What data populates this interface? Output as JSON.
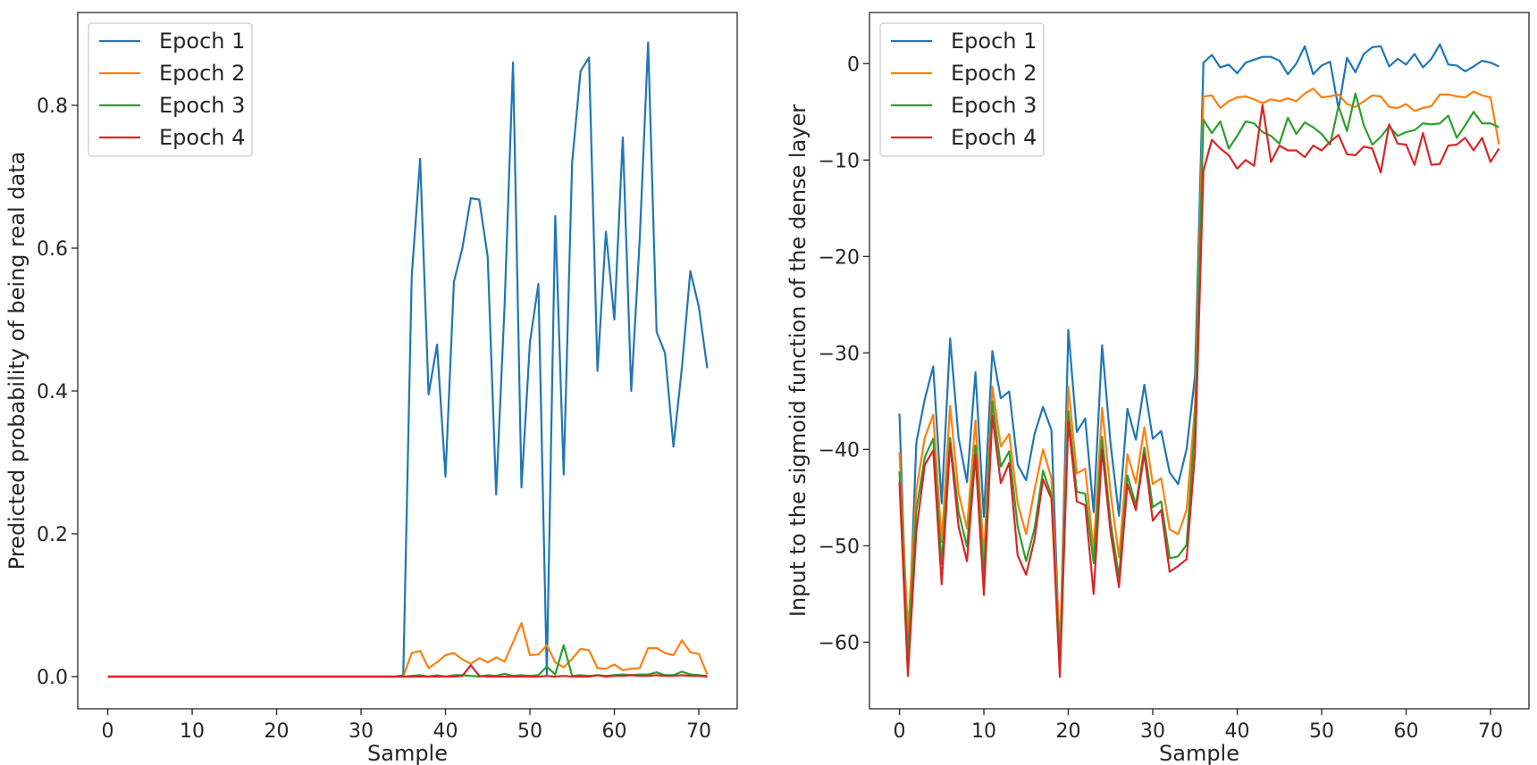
{
  "chart_data": [
    {
      "type": "line",
      "title": "",
      "xlabel": "Sample",
      "ylabel": "Predicted probability of being real data",
      "xlim": [
        -3.55,
        74.55
      ],
      "ylim": [
        -0.045,
        0.93
      ],
      "xticks": [
        0,
        10,
        20,
        30,
        40,
        50,
        60,
        70
      ],
      "xtick_labels": [
        "0",
        "10",
        "20",
        "30",
        "40",
        "50",
        "60",
        "70"
      ],
      "yticks": [
        0.0,
        0.2,
        0.4,
        0.6,
        0.8
      ],
      "ytick_labels": [
        "0.0",
        "0.2",
        "0.4",
        "0.6",
        "0.8"
      ],
      "grid": false,
      "legend_position": "top-left",
      "series": [
        {
          "name": "Epoch 1",
          "color": "#1f77b4",
          "values": [
            0,
            0,
            0,
            0,
            0,
            0,
            0,
            0,
            0,
            0,
            0,
            0,
            0,
            0,
            0,
            0,
            0,
            0,
            0,
            0,
            0,
            0,
            0,
            0,
            0,
            0,
            0,
            0,
            0,
            0,
            0,
            0,
            0,
            0,
            0,
            0.002,
            0.56,
            0.725,
            0.395,
            0.465,
            0.28,
            0.553,
            0.6,
            0.67,
            0.668,
            0.588,
            0.255,
            0.52,
            0.86,
            0.265,
            0.468,
            0.55,
            0.003,
            0.645,
            0.283,
            0.72,
            0.848,
            0.867,
            0.428,
            0.623,
            0.5,
            0.755,
            0.4,
            0.612,
            0.888,
            0.483,
            0.453,
            0.322,
            0.433,
            0.568,
            0.518,
            0.432
          ]
        },
        {
          "name": "Epoch 2",
          "color": "#ff7f0e",
          "values": [
            0,
            0,
            0,
            0,
            0,
            0,
            0,
            0,
            0,
            0,
            0,
            0,
            0,
            0,
            0,
            0,
            0,
            0,
            0,
            0,
            0,
            0,
            0,
            0,
            0,
            0,
            0,
            0,
            0,
            0,
            0,
            0,
            0,
            0,
            0,
            0,
            0.033,
            0.036,
            0.012,
            0.02,
            0.03,
            0.033,
            0.024,
            0.018,
            0.026,
            0.02,
            0.027,
            0.021,
            0.048,
            0.075,
            0.03,
            0.031,
            0.044,
            0.02,
            0.013,
            0.025,
            0.039,
            0.037,
            0.012,
            0.011,
            0.017,
            0.009,
            0.011,
            0.012,
            0.04,
            0.04,
            0.033,
            0.03,
            0.051,
            0.034,
            0.032,
            0.003
          ]
        },
        {
          "name": "Epoch 3",
          "color": "#2ca02c",
          "values": [
            0,
            0,
            0,
            0,
            0,
            0,
            0,
            0,
            0,
            0,
            0,
            0,
            0,
            0,
            0,
            0,
            0,
            0,
            0,
            0,
            0,
            0,
            0,
            0,
            0,
            0,
            0,
            0,
            0,
            0,
            0,
            0,
            0,
            0,
            0,
            0,
            0.001,
            0.002,
            0,
            0.002,
            0,
            0.002,
            0.002,
            0.001,
            0,
            0.002,
            0.001,
            0.004,
            0.001,
            0.002,
            0.001,
            0.002,
            0.014,
            0.003,
            0.044,
            0.001,
            0.002,
            0.001,
            0.002,
            0.001,
            0.002,
            0.003,
            0.002,
            0.003,
            0.003,
            0.006,
            0.002,
            0.002,
            0.007,
            0.003,
            0.002,
            0.001
          ]
        },
        {
          "name": "Epoch 4",
          "color": "#d62728",
          "values": [
            0,
            0,
            0,
            0,
            0,
            0,
            0,
            0,
            0,
            0,
            0,
            0,
            0,
            0,
            0,
            0,
            0,
            0,
            0,
            0,
            0,
            0,
            0,
            0,
            0,
            0,
            0,
            0,
            0,
            0,
            0,
            0,
            0,
            0,
            0,
            0,
            0,
            0,
            0,
            0,
            0,
            0,
            0.001,
            0.016,
            0.001,
            0,
            0,
            0,
            0,
            0,
            0,
            0,
            0.001,
            0,
            0.001,
            0,
            0,
            0,
            0.002,
            0,
            0.001,
            0.001,
            0.002,
            0.001,
            0.001,
            0.002,
            0.001,
            0.001,
            0.002,
            0.001,
            0.001,
            0
          ]
        }
      ]
    },
    {
      "type": "line",
      "title": "",
      "xlabel": "Sample",
      "ylabel": "Input to the sigmoid function of the dense layer",
      "xlim": [
        -3.55,
        74.55
      ],
      "ylim": [
        -66.9,
        5.3
      ],
      "xticks": [
        0,
        10,
        20,
        30,
        40,
        50,
        60,
        70
      ],
      "xtick_labels": [
        "0",
        "10",
        "20",
        "30",
        "40",
        "50",
        "60",
        "70"
      ],
      "yticks": [
        0,
        -10,
        -20,
        -30,
        -40,
        -50,
        -60
      ],
      "ytick_labels": [
        "0",
        "−10",
        "−20",
        "−30",
        "−40",
        "−50",
        "−60"
      ],
      "grid": false,
      "legend_position": "top-left",
      "series": [
        {
          "name": "Epoch 1",
          "color": "#1f77b4",
          "values": [
            -36.3,
            -62.2,
            -39.3,
            -34.8,
            -31.4,
            -45.6,
            -28.5,
            -38.8,
            -43.4,
            -32,
            -47,
            -29.8,
            -34.7,
            -34,
            -41.6,
            -43.2,
            -38.4,
            -35.6,
            -38,
            -61.9,
            -27.6,
            -38.2,
            -36.8,
            -46.5,
            -29.2,
            -39.4,
            -46.9,
            -35.8,
            -39,
            -33.3,
            -38.9,
            -38.1,
            -42.4,
            -43.6,
            -40,
            -32.4,
            0.1,
            0.9,
            -0.4,
            -0.1,
            -1,
            0.1,
            0.4,
            0.7,
            0.7,
            0.3,
            -1.1,
            0,
            1.8,
            -1.1,
            -0.2,
            0.2,
            -4.7,
            0.6,
            -0.9,
            1,
            1.7,
            1.8,
            -0.3,
            0.5,
            -0.1,
            1,
            -0.4,
            0.5,
            2,
            -0.1,
            -0.2,
            -0.8,
            -0.3,
            0.3,
            0.1,
            -0.3
          ]
        },
        {
          "name": "Epoch 2",
          "color": "#ff7f0e",
          "values": [
            -40.3,
            -58.9,
            -44.2,
            -38.8,
            -36.4,
            -49.6,
            -35.5,
            -44.5,
            -48.2,
            -37,
            -51.2,
            -33.5,
            -39.7,
            -38.4,
            -45.6,
            -48.8,
            -44.2,
            -40,
            -43,
            -60.5,
            -33.5,
            -42.5,
            -42,
            -50.5,
            -35.7,
            -44.5,
            -51.2,
            -40.5,
            -43.5,
            -37.7,
            -43.6,
            -43,
            -48.3,
            -48.8,
            -46.3,
            -35.5,
            -3.4,
            -3.3,
            -4.6,
            -3.9,
            -3.5,
            -3.4,
            -3.7,
            -4.1,
            -3.7,
            -3.9,
            -3.6,
            -3.9,
            -3.1,
            -2.6,
            -3.5,
            -3.4,
            -3.2,
            -4.2,
            -4.5,
            -3.9,
            -3.3,
            -3.4,
            -4.5,
            -4.6,
            -4.2,
            -4.9,
            -4.6,
            -4.4,
            -3.2,
            -3.2,
            -3.4,
            -3.5,
            -2.9,
            -3.3,
            -3.5,
            -8.4
          ]
        },
        {
          "name": "Epoch 3",
          "color": "#2ca02c",
          "values": [
            -42.3,
            -61.4,
            -46.3,
            -40.8,
            -38.9,
            -51.9,
            -38.8,
            -46.5,
            -50.1,
            -39.6,
            -53.2,
            -35,
            -41.8,
            -40.2,
            -48,
            -51.6,
            -48.2,
            -42.2,
            -44.8,
            -62.2,
            -36,
            -44.4,
            -44.6,
            -51.8,
            -38.7,
            -47.5,
            -53.2,
            -42.7,
            -45.8,
            -39.8,
            -46,
            -45.4,
            -51.3,
            -51.1,
            -49.9,
            -37.3,
            -5.8,
            -7.2,
            -6,
            -8.8,
            -7.5,
            -6,
            -6.2,
            -7.1,
            -7.5,
            -8.3,
            -5.6,
            -7.3,
            -6.1,
            -6.6,
            -7.3,
            -8.4,
            -4.4,
            -7,
            -3.1,
            -6.4,
            -8.4,
            -7.6,
            -6.5,
            -7.5,
            -7.1,
            -6.9,
            -6.2,
            -6.3,
            -6.2,
            -5.4,
            -7.7,
            -6.4,
            -5,
            -6.2,
            -6.2,
            -6.6
          ]
        },
        {
          "name": "Epoch 4",
          "color": "#d62728",
          "values": [
            -43.4,
            -63.5,
            -48.5,
            -41.6,
            -40.1,
            -54,
            -39.4,
            -48,
            -51.6,
            -40.6,
            -55.1,
            -36.5,
            -43.5,
            -41.4,
            -51,
            -53,
            -49.3,
            -43.1,
            -45.1,
            -63.6,
            -37.1,
            -45.4,
            -45.8,
            -55,
            -40,
            -48.6,
            -54.3,
            -43.6,
            -46.3,
            -40.4,
            -47.4,
            -46.3,
            -52.7,
            -52.1,
            -51.4,
            -40.4,
            -11.1,
            -7.9,
            -8.8,
            -9.5,
            -10.9,
            -10,
            -10.6,
            -4.3,
            -10.2,
            -8.5,
            -9,
            -9,
            -9.7,
            -8.5,
            -9,
            -8.1,
            -7.4,
            -9.4,
            -9.5,
            -8.6,
            -8.8,
            -11.3,
            -6.3,
            -8.3,
            -8.4,
            -10.5,
            -7.2,
            -10.5,
            -10.4,
            -8.5,
            -8.4,
            -7.7,
            -9,
            -7.7,
            -10.2,
            -8.8
          ]
        }
      ]
    }
  ]
}
